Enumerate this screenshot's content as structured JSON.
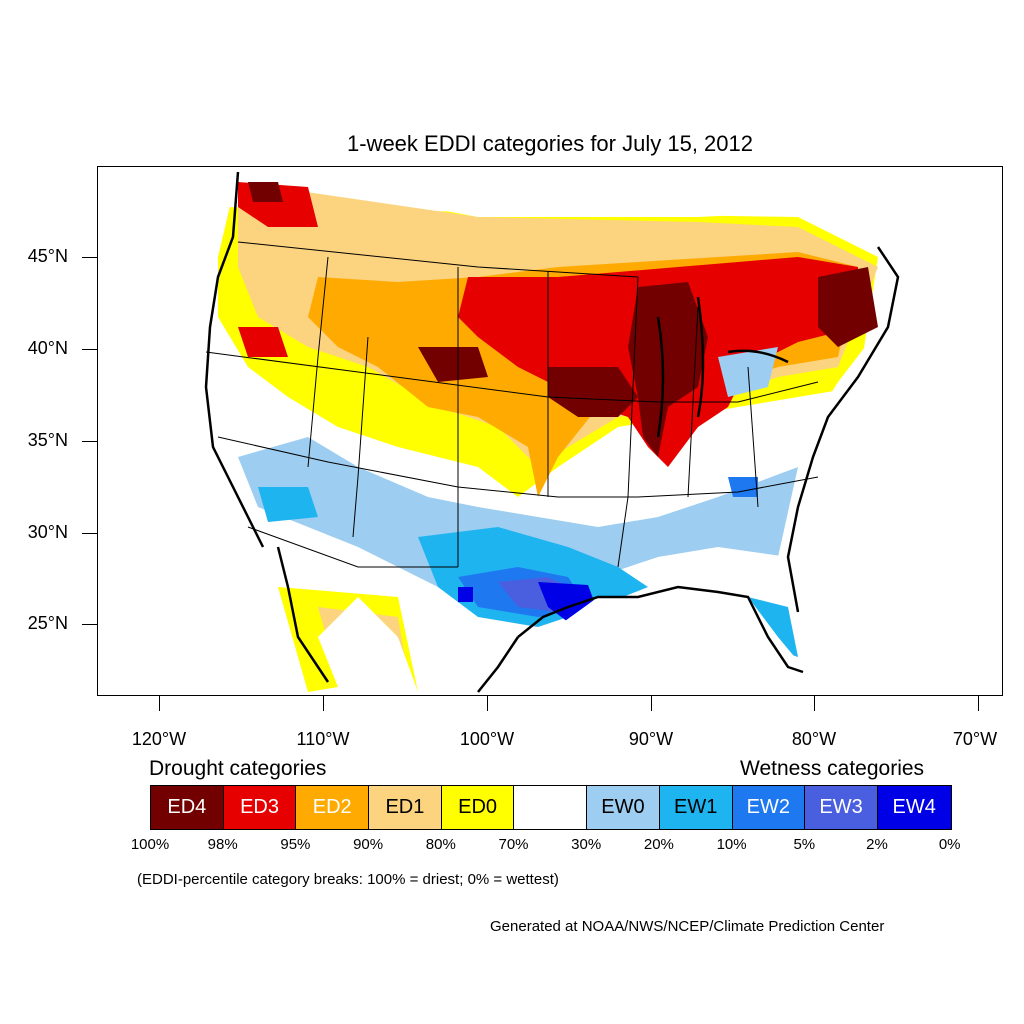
{
  "title": "1-week EDDI categories for July 15, 2012",
  "lat_labels": [
    "45°N",
    "40°N",
    "35°N",
    "30°N",
    "25°N"
  ],
  "lon_labels": [
    "120°W",
    "110°W",
    "100°W",
    "90°W",
    "80°W",
    "70°W"
  ],
  "legend": {
    "drought_heading": "Drought categories",
    "wetness_heading": "Wetness categories",
    "categories": [
      {
        "label": "ED4",
        "color": "#730000",
        "text_color": "#ffffff"
      },
      {
        "label": "ED3",
        "color": "#e60000",
        "text_color": "#ffffff"
      },
      {
        "label": "ED2",
        "color": "#ffaa00",
        "text_color": "#ffffff"
      },
      {
        "label": "ED1",
        "color": "#fcd37f",
        "text_color": "#000000"
      },
      {
        "label": "ED0",
        "color": "#ffff00",
        "text_color": "#000000"
      },
      {
        "label": "",
        "color": "#ffffff",
        "text_color": "#000000"
      },
      {
        "label": "EW0",
        "color": "#9dcdf0",
        "text_color": "#000000"
      },
      {
        "label": "EW1",
        "color": "#1eb4f0",
        "text_color": "#000000"
      },
      {
        "label": "EW2",
        "color": "#1e78f0",
        "text_color": "#ffffff"
      },
      {
        "label": "EW3",
        "color": "#4a5fe0",
        "text_color": "#ffffff"
      },
      {
        "label": "EW4",
        "color": "#0000e6",
        "text_color": "#ffffff"
      }
    ],
    "breaks": [
      "100%",
      "98%",
      "95%",
      "90%",
      "80%",
      "70%",
      "30%",
      "20%",
      "10%",
      "5%",
      "2%",
      "0%"
    ]
  },
  "note": "(EDDI-percentile category breaks: 100% = driest; 0% = wettest)",
  "credit": "Generated at NOAA/NWS/NCEP/Climate Prediction Center"
}
